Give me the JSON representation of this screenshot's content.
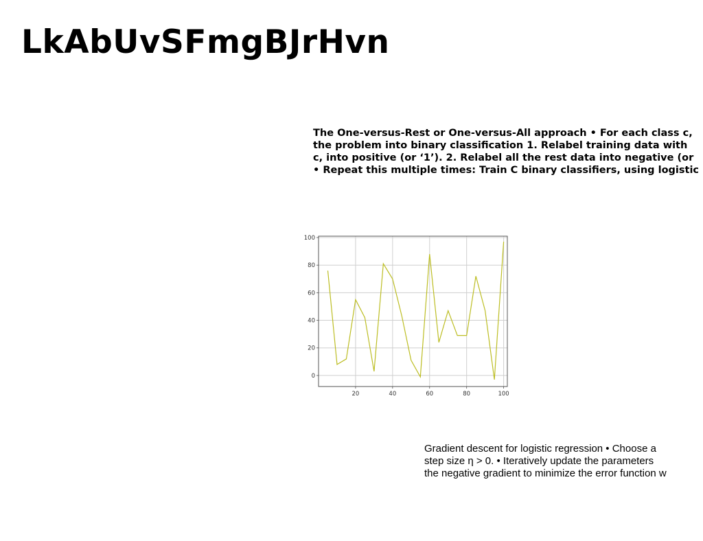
{
  "slide": {
    "title": "LkAbUvSFmgBJrHvn",
    "ovr_lines": [
      "The One-versus-Rest or One-versus-All approach • For each class c,",
      "the problem into binary classification 1. Relabel training data with",
      "c, into positive (or ‘1’). 2. Relabel all the rest data into negative (or",
      "• Repeat this multiple times: Train C binary classifiers, using logistic"
    ],
    "gd_lines": [
      "Gradient descent for logistic regression • Choose a",
      "step size η > 0. • Iteratively update the parameters",
      "the negative gradient to minimize the error function w"
    ]
  },
  "chart_data": {
    "type": "line",
    "x": [
      5,
      10,
      15,
      20,
      25,
      30,
      35,
      40,
      45,
      50,
      55,
      60,
      65,
      70,
      75,
      80,
      85,
      90,
      95,
      100
    ],
    "series": [
      {
        "values": [
          76,
          8,
          12,
          55,
          42,
          3,
          81,
          70,
          43,
          11,
          -1,
          88,
          24,
          47,
          29,
          29,
          72,
          47,
          -3,
          97
        ]
      }
    ],
    "xlim": [
      0,
      102
    ],
    "ylim": [
      -8,
      101
    ],
    "xticks": [
      "20",
      "40",
      "60",
      "80",
      "100"
    ],
    "yticks": [
      "0",
      "20",
      "40",
      "60",
      "80",
      "100"
    ],
    "grid": true,
    "line_color": "#bcbd22"
  }
}
